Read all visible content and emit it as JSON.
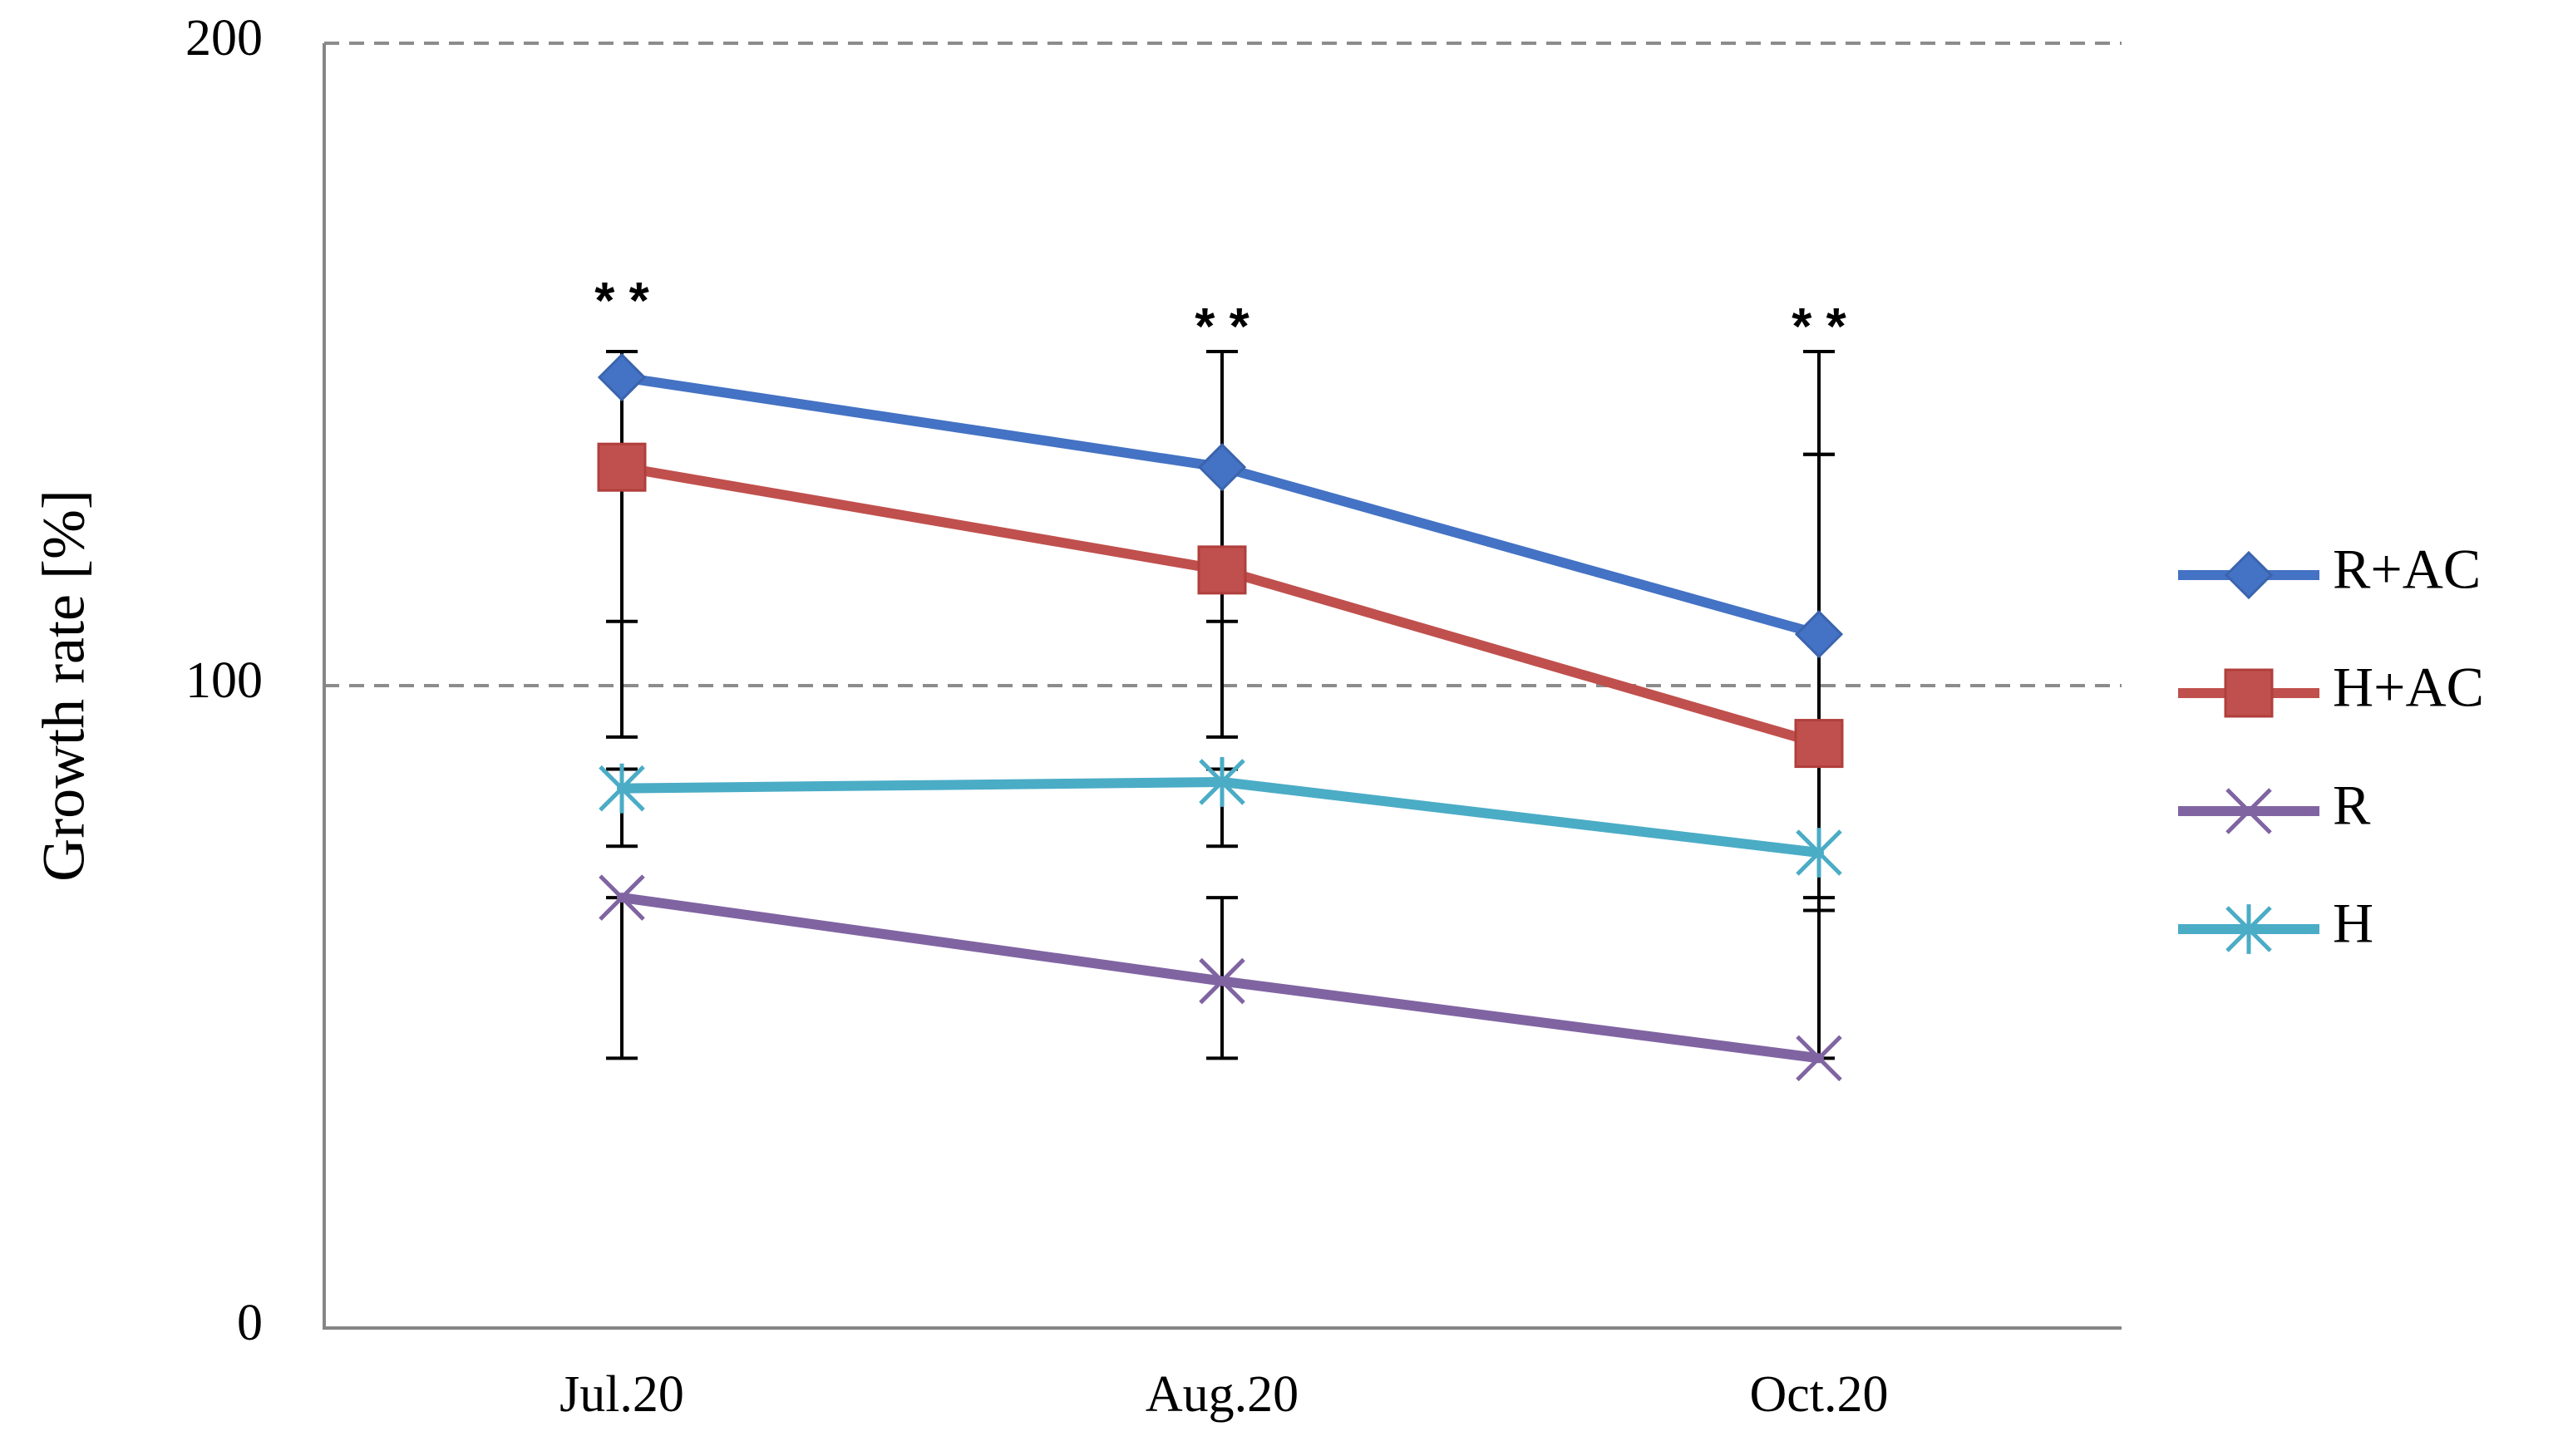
{
  "chart_data": {
    "type": "line",
    "title": "",
    "xlabel": "",
    "ylabel": "Growth rate [%]",
    "ylim": [
      0,
      200
    ],
    "yticks": [
      0,
      100,
      200
    ],
    "ytick_labels": [
      "0",
      "100",
      "200"
    ],
    "dashed_gridlines": [
      100,
      200
    ],
    "categories": [
      "Jul.20",
      "Aug.20",
      "Oct.20"
    ],
    "series": [
      {
        "name": "R+AC",
        "color": "#4472C4",
        "marker": "diamond",
        "values": [
          148,
          134,
          108
        ],
        "error_bars": [
          {
            "low": 110,
            "high": 152
          },
          {
            "low": 110,
            "high": 152
          },
          {
            "low": 136,
            "high": 152
          }
        ]
      },
      {
        "name": "H+AC",
        "color": "#C0504D",
        "marker": "square",
        "values": [
          134,
          118,
          91
        ],
        "error_bars": [
          {
            "low": 92,
            "high": 134
          },
          {
            "low": 92,
            "high": 134
          },
          {
            "low": 65,
            "high": 136
          }
        ]
      },
      {
        "name": "R",
        "color": "#8064A2",
        "marker": "x",
        "values": [
          67,
          54,
          42
        ],
        "error_bars": [
          {
            "low": 42,
            "high": 67
          },
          {
            "low": 42,
            "high": 67
          },
          {
            "low": 42,
            "high": 67
          }
        ]
      },
      {
        "name": "H",
        "color": "#4BACC6",
        "marker": "asterisk",
        "values": [
          84,
          85,
          74
        ],
        "error_bars": [
          {
            "low": 75,
            "high": 87
          },
          {
            "low": 75,
            "high": 87
          },
          {
            "low": 74,
            "high": 74
          }
        ]
      }
    ],
    "annotations": [
      {
        "category": "Jul.20",
        "text": "* *",
        "value": 160
      },
      {
        "category": "Aug.20",
        "text": "* *",
        "value": 156
      },
      {
        "category": "Oct.20",
        "text": "* *",
        "value": 156
      }
    ],
    "legend_position": "right"
  }
}
